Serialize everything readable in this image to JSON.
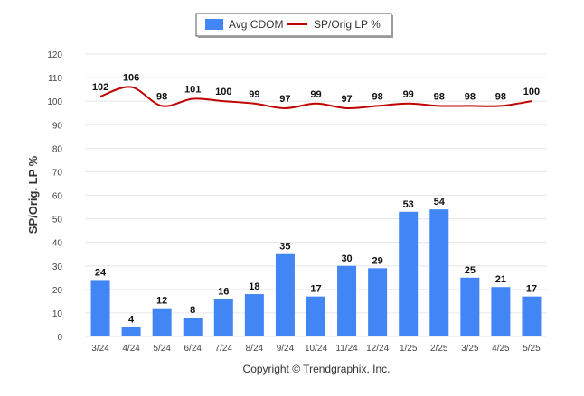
{
  "chart_data": {
    "type": "bar",
    "categories": [
      "3/24",
      "4/24",
      "5/24",
      "6/24",
      "7/24",
      "8/24",
      "9/24",
      "10/24",
      "11/24",
      "12/24",
      "1/25",
      "2/25",
      "3/25",
      "4/25",
      "5/25"
    ],
    "series": [
      {
        "name": "Avg CDOM",
        "type": "bar",
        "color": "#4285f4",
        "values": [
          24,
          4,
          12,
          8,
          16,
          18,
          35,
          17,
          30,
          29,
          53,
          54,
          25,
          21,
          17
        ]
      },
      {
        "name": "SP/Orig LP %",
        "type": "line",
        "color": "#c00000",
        "values": [
          102,
          106,
          98,
          101,
          100,
          99,
          97,
          99,
          97,
          98,
          99,
          98,
          98,
          98,
          100
        ]
      }
    ],
    "ylabel": "SP/Orig. LP %",
    "ylim": [
      0,
      120
    ],
    "yticks": [
      0,
      10,
      20,
      30,
      40,
      50,
      60,
      70,
      80,
      90,
      100,
      110,
      120
    ],
    "grid": true,
    "legend_position": "top-center"
  },
  "footer": {
    "copyright": "Copyright © Trendgraphix, Inc."
  }
}
